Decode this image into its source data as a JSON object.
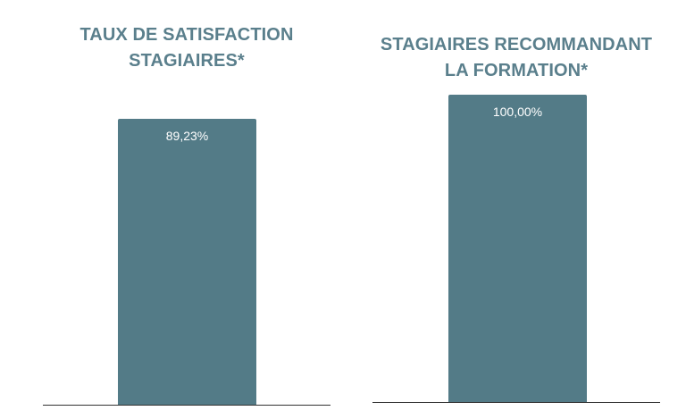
{
  "chart_data": [
    {
      "type": "bar",
      "title": "TAUX DE SATISFACTION STAGIAIRES*",
      "title_lines": [
        "TAUX DE SATISFACTION",
        "STAGIAIRES*"
      ],
      "categories": [
        ""
      ],
      "values": [
        89.23
      ],
      "data_labels": [
        "89,23%"
      ],
      "ylim": [
        0,
        100
      ],
      "grid": false,
      "color": "#537b87"
    },
    {
      "type": "bar",
      "title": "STAGIAIRES RECOMMANDANT LA FORMATION*",
      "title_lines": [
        "STAGIAIRES RECOMMANDANT",
        "LA FORMATION*"
      ],
      "categories": [
        ""
      ],
      "values": [
        100.0
      ],
      "data_labels": [
        "100,00%"
      ],
      "ylim": [
        0,
        100
      ],
      "grid": false,
      "color": "#537b87"
    }
  ],
  "colors": {
    "title": "#5a7f8c",
    "bar": "#537b87",
    "bar_label": "#ffffff",
    "axis": "#333333"
  }
}
